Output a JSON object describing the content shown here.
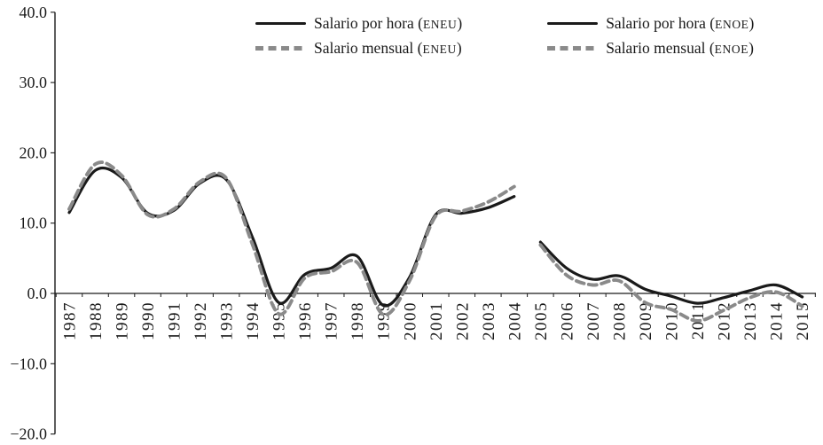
{
  "chart_data": {
    "type": "line",
    "title": "",
    "x_start_year": 1987,
    "x_tick_labels": [
      "1987",
      "1988",
      "1989",
      "1990",
      "1991",
      "1992",
      "1993",
      "1994",
      "1995",
      "1996",
      "1997",
      "1998",
      "1999",
      "2000",
      "2001",
      "2002",
      "2003",
      "2004",
      "2005",
      "2006",
      "2007",
      "2008",
      "2009",
      "2010",
      "2011",
      "2012",
      "2013",
      "2014",
      "2015"
    ],
    "ylim": [
      -20,
      40
    ],
    "yticks": [
      40,
      30,
      20,
      10,
      0,
      -10,
      -20
    ],
    "ytick_labels": [
      "40.0",
      "30.0",
      "20.0",
      "10.0",
      "0.0",
      "−10.0",
      "−20.0"
    ],
    "grid": false,
    "legend_position": "top",
    "colors": {
      "solid_line": "#1a1a1a",
      "dashed_line": "#8a8a8a"
    },
    "series": [
      {
        "id": "eneu-hora",
        "label_prefix": "Salario por hora (",
        "label_tag": "ENEU",
        "label_suffix": ")",
        "line": "solid",
        "color": "#1a1a1a",
        "x_start": 1987,
        "values": [
          11.5,
          17.5,
          16.5,
          11.4,
          11.8,
          15.7,
          16.2,
          8.0,
          -1.3,
          2.7,
          3.6,
          5.3,
          -1.7,
          2.3,
          11.2,
          11.4,
          12.2,
          13.8
        ]
      },
      {
        "id": "eneu-mensual",
        "label_prefix": "Salario mensual (",
        "label_tag": "ENEU",
        "label_suffix": ")",
        "line": "dashed",
        "color": "#8a8a8a",
        "x_start": 1987,
        "values": [
          12.0,
          18.4,
          16.8,
          11.2,
          12.0,
          15.9,
          16.4,
          7.0,
          -2.9,
          2.2,
          3.1,
          4.4,
          -3.0,
          1.8,
          11.0,
          11.7,
          13.0,
          15.2
        ]
      },
      {
        "id": "enoe-hora",
        "label_prefix": "Salario por hora (",
        "label_tag": "ENOE",
        "label_suffix": ")",
        "line": "solid",
        "color": "#1a1a1a",
        "x_start": 2005,
        "values": [
          7.3,
          3.6,
          2.0,
          2.5,
          0.6,
          -0.4,
          -1.4,
          -0.6,
          0.4,
          1.2,
          -0.5
        ]
      },
      {
        "id": "enoe-mensual",
        "label_prefix": "Salario mensual (",
        "label_tag": "ENOE",
        "label_suffix": ")",
        "line": "dashed",
        "color": "#8a8a8a",
        "x_start": 2005,
        "values": [
          6.9,
          2.6,
          1.2,
          1.8,
          -1.3,
          -2.3,
          -3.9,
          -2.4,
          -0.6,
          0.2,
          -1.8
        ]
      }
    ]
  }
}
